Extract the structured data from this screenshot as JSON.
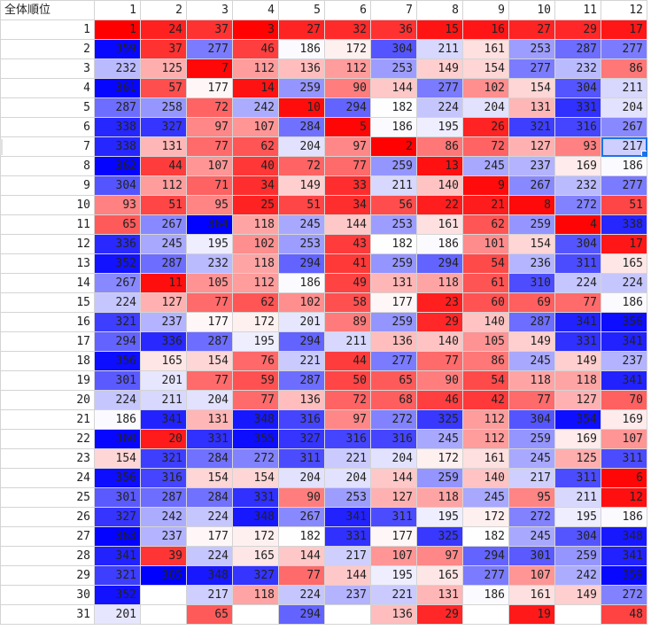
{
  "corner_label": "全体順位",
  "columns": [
    "1",
    "2",
    "3",
    "4",
    "5",
    "6",
    "7",
    "8",
    "9",
    "10",
    "11",
    "12"
  ],
  "rows": [
    {
      "label": "1",
      "cells": [
        1,
        24,
        37,
        3,
        27,
        32,
        36,
        15,
        16,
        27,
        29,
        17
      ]
    },
    {
      "label": "2",
      "cells": [
        359,
        37,
        277,
        46,
        186,
        172,
        304,
        211,
        161,
        253,
        287,
        277
      ]
    },
    {
      "label": "3",
      "cells": [
        232,
        125,
        7,
        112,
        136,
        112,
        253,
        149,
        154,
        277,
        232,
        86
      ]
    },
    {
      "label": "4",
      "cells": [
        361,
        57,
        177,
        14,
        259,
        90,
        144,
        277,
        102,
        154,
        304,
        211
      ]
    },
    {
      "label": "5",
      "cells": [
        287,
        258,
        72,
        242,
        10,
        294,
        182,
        224,
        204,
        131,
        331,
        204
      ]
    },
    {
      "label": "6",
      "cells": [
        338,
        327,
        97,
        107,
        284,
        5,
        186,
        195,
        26,
        321,
        316,
        267
      ]
    },
    {
      "label": "7",
      "cells": [
        338,
        131,
        77,
        62,
        204,
        97,
        2,
        86,
        72,
        127,
        93,
        217
      ]
    },
    {
      "label": "8",
      "cells": [
        362,
        44,
        107,
        40,
        72,
        77,
        259,
        13,
        245,
        237,
        169,
        186
      ]
    },
    {
      "label": "9",
      "cells": [
        304,
        112,
        71,
        34,
        149,
        33,
        211,
        140,
        9,
        267,
        232,
        277
      ]
    },
    {
      "label": "10",
      "cells": [
        93,
        51,
        95,
        25,
        51,
        34,
        56,
        22,
        21,
        8,
        272,
        51
      ]
    },
    {
      "label": "11",
      "cells": [
        65,
        267,
        364,
        118,
        245,
        144,
        253,
        161,
        62,
        259,
        4,
        338
      ]
    },
    {
      "label": "12",
      "cells": [
        336,
        245,
        195,
        102,
        253,
        43,
        182,
        186,
        101,
        154,
        304,
        17
      ]
    },
    {
      "label": "13",
      "cells": [
        352,
        287,
        232,
        118,
        294,
        41,
        259,
        294,
        54,
        236,
        311,
        165
      ]
    },
    {
      "label": "14",
      "cells": [
        267,
        11,
        105,
        112,
        186,
        49,
        131,
        118,
        61,
        310,
        224,
        224
      ]
    },
    {
      "label": "15",
      "cells": [
        224,
        127,
        77,
        62,
        102,
        58,
        177,
        23,
        60,
        69,
        77,
        186
      ]
    },
    {
      "label": "16",
      "cells": [
        321,
        237,
        177,
        172,
        201,
        89,
        259,
        29,
        140,
        287,
        341,
        356
      ]
    },
    {
      "label": "17",
      "cells": [
        294,
        336,
        287,
        195,
        294,
        211,
        136,
        140,
        105,
        149,
        331,
        341
      ]
    },
    {
      "label": "18",
      "cells": [
        356,
        165,
        154,
        76,
        221,
        44,
        277,
        77,
        86,
        245,
        149,
        237
      ]
    },
    {
      "label": "19",
      "cells": [
        301,
        201,
        77,
        59,
        287,
        50,
        65,
        90,
        54,
        118,
        118,
        341
      ]
    },
    {
      "label": "20",
      "cells": [
        224,
        211,
        204,
        77,
        136,
        72,
        68,
        46,
        42,
        77,
        127,
        70
      ]
    },
    {
      "label": "21",
      "cells": [
        186,
        341,
        131,
        348,
        316,
        97,
        272,
        325,
        112,
        304,
        354,
        169
      ]
    },
    {
      "label": "22",
      "cells": [
        360,
        20,
        331,
        355,
        327,
        316,
        316,
        245,
        112,
        259,
        169,
        107
      ]
    },
    {
      "label": "23",
      "cells": [
        154,
        321,
        284,
        272,
        311,
        221,
        204,
        172,
        161,
        245,
        125,
        311
      ]
    },
    {
      "label": "24",
      "cells": [
        356,
        316,
        154,
        154,
        204,
        204,
        144,
        259,
        140,
        217,
        311,
        6
      ]
    },
    {
      "label": "25",
      "cells": [
        301,
        287,
        284,
        331,
        90,
        253,
        127,
        118,
        245,
        95,
        211,
        12
      ]
    },
    {
      "label": "26",
      "cells": [
        327,
        242,
        224,
        348,
        267,
        341,
        311,
        195,
        172,
        272,
        195,
        186
      ]
    },
    {
      "label": "27",
      "cells": [
        363,
        237,
        177,
        172,
        182,
        331,
        177,
        325,
        182,
        245,
        304,
        348
      ]
    },
    {
      "label": "28",
      "cells": [
        341,
        39,
        224,
        165,
        144,
        217,
        107,
        97,
        294,
        301,
        259,
        341
      ]
    },
    {
      "label": "29",
      "cells": [
        321,
        365,
        348,
        327,
        77,
        144,
        195,
        165,
        277,
        107,
        242,
        359
      ]
    },
    {
      "label": "30",
      "cells": [
        352,
        null,
        217,
        118,
        224,
        237,
        221,
        131,
        186,
        161,
        149,
        272
      ]
    },
    {
      "label": "31",
      "cells": [
        201,
        null,
        65,
        null,
        294,
        null,
        136,
        29,
        null,
        19,
        null,
        48
      ]
    }
  ],
  "selected_cell": {
    "row": "7",
    "col": "12"
  },
  "colors": {
    "low": "#ff0000",
    "mid": "#ffffff",
    "high": "#0000ff",
    "grid": "#d4d4d4",
    "selection": "#1a73e8"
  },
  "scale": {
    "min": 1,
    "mid": 183,
    "max": 365
  }
}
